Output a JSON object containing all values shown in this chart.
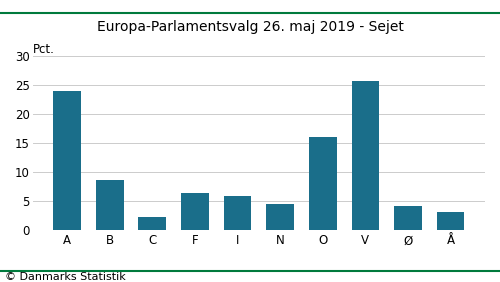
{
  "title": "Europa-Parlamentsvalg 26. maj 2019 - Sejet",
  "categories": [
    "A",
    "B",
    "C",
    "F",
    "I",
    "N",
    "O",
    "V",
    "Ø",
    "Å"
  ],
  "values": [
    24.0,
    8.7,
    2.3,
    6.4,
    5.9,
    4.5,
    16.0,
    25.7,
    4.1,
    3.2
  ],
  "bar_color": "#1a6e8a",
  "ylabel": "Pct.",
  "ylim": [
    0,
    30
  ],
  "yticks": [
    0,
    5,
    10,
    15,
    20,
    25,
    30
  ],
  "footer": "© Danmarks Statistik",
  "title_fontsize": 10,
  "tick_fontsize": 8.5,
  "footer_fontsize": 8,
  "ylabel_fontsize": 8.5,
  "line_color": "#007a3d",
  "background_color": "#ffffff"
}
